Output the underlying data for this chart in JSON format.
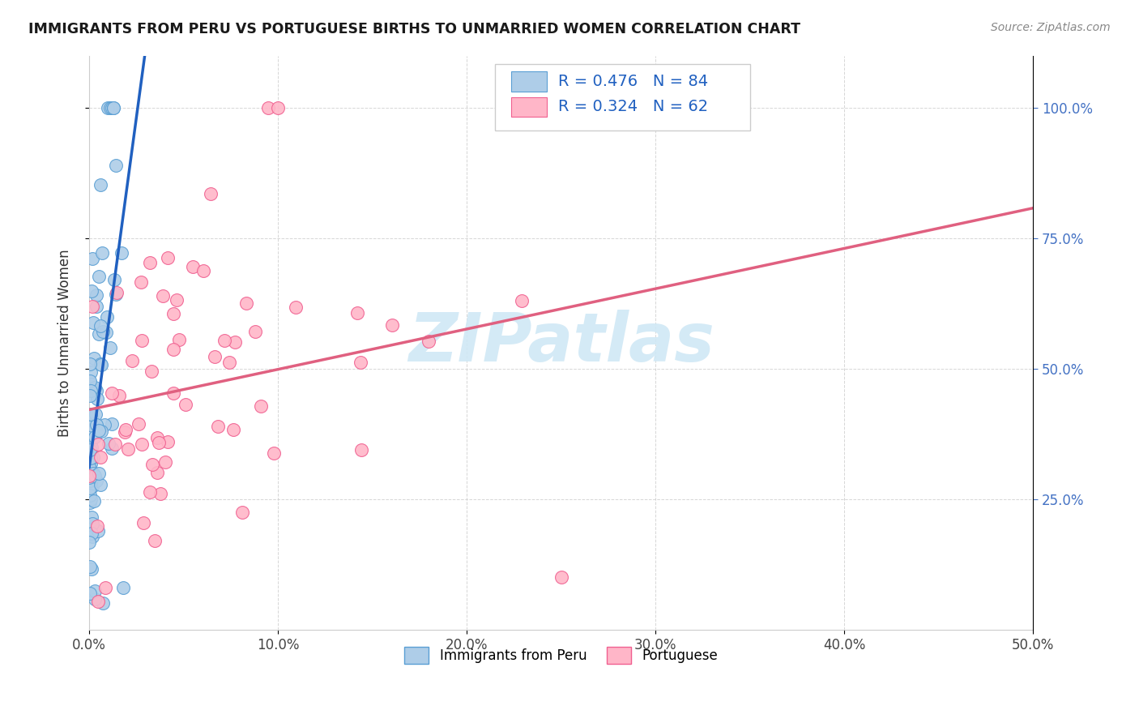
{
  "title": "IMMIGRANTS FROM PERU VS PORTUGUESE BIRTHS TO UNMARRIED WOMEN CORRELATION CHART",
  "source": "Source: ZipAtlas.com",
  "ylabel": "Births to Unmarried Women",
  "legend_blue_R": "R = 0.476",
  "legend_blue_N": "N = 84",
  "legend_pink_R": "R = 0.324",
  "legend_pink_N": "N = 62",
  "legend_label_blue": "Immigrants from Peru",
  "legend_label_pink": "Portuguese",
  "blue_color": "#aecde8",
  "pink_color": "#ffb6c8",
  "blue_edge_color": "#5a9fd4",
  "pink_edge_color": "#f06090",
  "blue_line_color": "#2060c0",
  "pink_line_color": "#e06080",
  "watermark_color": "#d0e8f5",
  "watermark": "ZIPatlas",
  "xtick_labels": [
    "0.0%",
    "10.0%",
    "20.0%",
    "30.0%",
    "40.0%",
    "50.0%"
  ],
  "ytick_labels": [
    "25.0%",
    "50.0%",
    "75.0%",
    "100.0%"
  ],
  "xlim": [
    0.0,
    0.5
  ],
  "ylim": [
    0.0,
    1.1
  ],
  "blue_seed": 42,
  "pink_seed": 7
}
